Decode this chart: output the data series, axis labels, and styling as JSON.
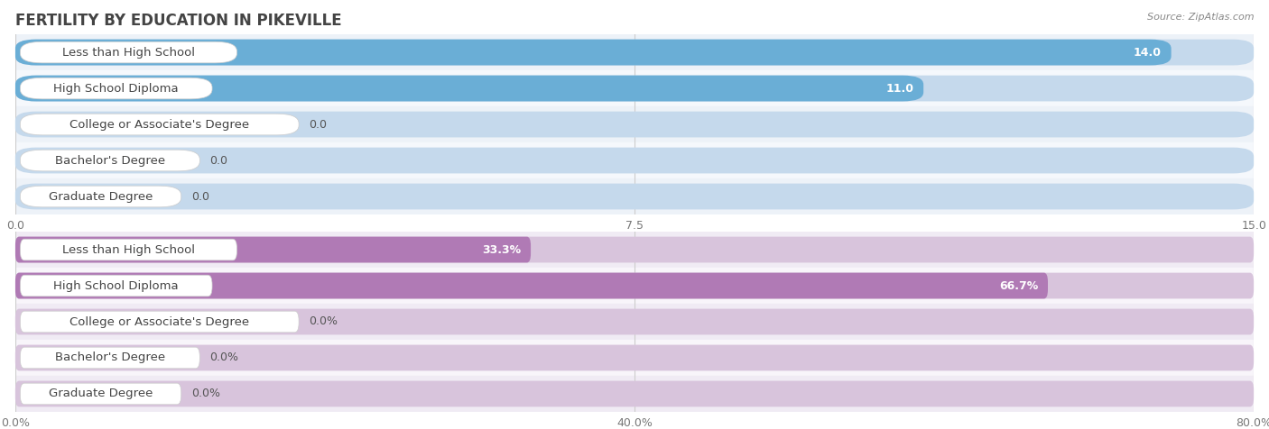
{
  "title": "FERTILITY BY EDUCATION IN PIKEVILLE",
  "source": "Source: ZipAtlas.com",
  "top_chart": {
    "categories": [
      "Less than High School",
      "High School Diploma",
      "College or Associate's Degree",
      "Bachelor's Degree",
      "Graduate Degree"
    ],
    "values": [
      14.0,
      11.0,
      0.0,
      0.0,
      0.0
    ],
    "bar_color": "#6aaed6",
    "bar_bg_color": "#c5d9ec",
    "row_bg_even": "#edf2f8",
    "row_bg_odd": "#f5f8fc",
    "xlim": [
      0,
      15.0
    ],
    "xticks": [
      0.0,
      7.5,
      15.0
    ],
    "value_label_inside": [
      true,
      true,
      false,
      false,
      false
    ]
  },
  "bottom_chart": {
    "categories": [
      "Less than High School",
      "High School Diploma",
      "College or Associate's Degree",
      "Bachelor's Degree",
      "Graduate Degree"
    ],
    "values": [
      33.3,
      66.7,
      0.0,
      0.0,
      0.0
    ],
    "bar_color": "#b07ab5",
    "bar_bg_color": "#d8c4dc",
    "row_bg_even": "#f0ebf4",
    "row_bg_odd": "#f8f5fa",
    "xlim": [
      0,
      80.0
    ],
    "xticks": [
      0.0,
      40.0,
      80.0
    ],
    "value_label_inside": [
      true,
      true,
      false,
      false,
      false
    ]
  },
  "bg_color": "#ffffff",
  "title_color": "#444444",
  "source_color": "#888888",
  "label_text_color": "#444444",
  "value_text_color_inside": "#ffffff",
  "value_text_color_outside": "#555555",
  "bar_height": 0.72,
  "title_fontsize": 12,
  "label_fontsize": 9.5,
  "value_fontsize": 9,
  "tick_fontsize": 9
}
